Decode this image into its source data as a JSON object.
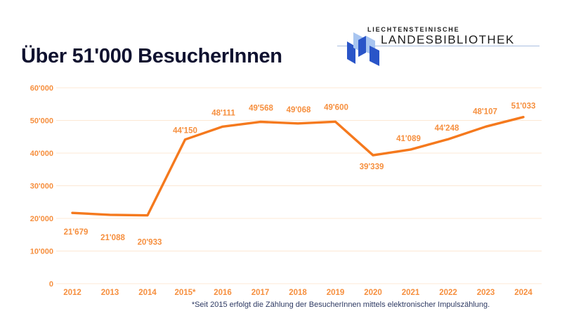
{
  "header": {
    "title": "Über 51'000 BesucherInnen",
    "title_color": "#101230"
  },
  "logo": {
    "line1": "LIECHTENSTEINISCHE",
    "line2": "LANDESBIBLIOTHEK",
    "mark_color_light": "#a8c5f0",
    "mark_color_dark": "#2a55c8",
    "rule_color": "#a9bfe0"
  },
  "chart_data": {
    "type": "line",
    "title": "Über 51'000 BesucherInnen",
    "categories": [
      "2012",
      "2013",
      "2014",
      "2015*",
      "2016",
      "2017",
      "2018",
      "2019",
      "2020",
      "2021",
      "2022",
      "2023",
      "2024"
    ],
    "values": [
      21679,
      21088,
      20933,
      44150,
      48111,
      49568,
      49068,
      49600,
      39339,
      41089,
      44248,
      48107,
      51033
    ],
    "value_labels": [
      "21'679",
      "21'088",
      "20'933",
      "44'150",
      "48'111",
      "49'568",
      "49'068",
      "49'600",
      "39'339",
      "41'089",
      "44'248",
      "48'107",
      "51'033"
    ],
    "y_ticks": [
      0,
      10000,
      20000,
      30000,
      40000,
      50000,
      60000
    ],
    "y_tick_labels": [
      "0",
      "10'000",
      "20'000",
      "30'000",
      "40'000",
      "50'000",
      "60'000"
    ],
    "ylim": [
      0,
      60000
    ],
    "grid": "horizontal",
    "legend": "none",
    "line_color": "#f5791d",
    "label_color": "#f68f3e",
    "gridline_color": "#fce8d4"
  },
  "footnote": {
    "text": "*Seit 2015 erfolgt die Zählung der BesucherInnen mittels elektronischer Impulszählung."
  }
}
